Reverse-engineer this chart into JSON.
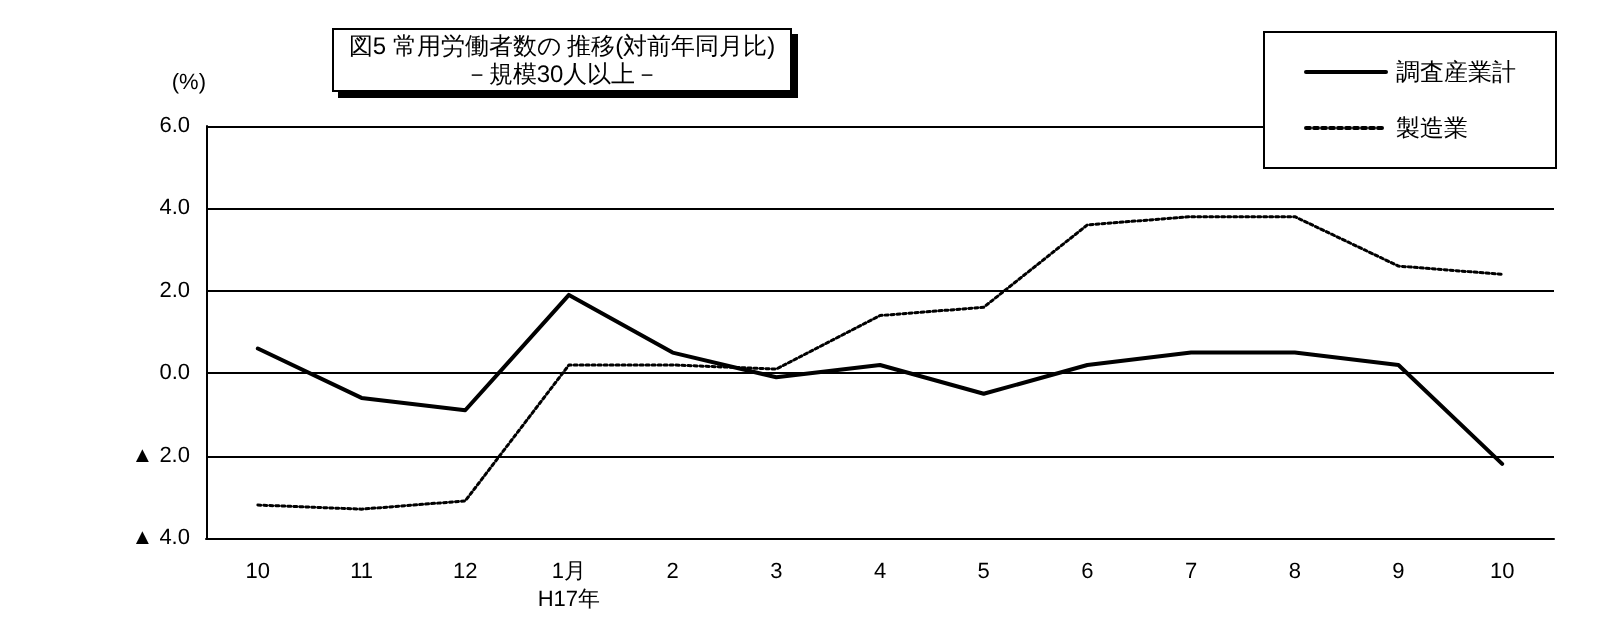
{
  "chart_data": {
    "type": "line",
    "title": "図5 常用労働者数の 推移(対前年同月比)",
    "subtitle": "－規模30人以上－",
    "ylabel": "(%)",
    "categories": [
      "10",
      "11",
      "12",
      "1月\nH17年",
      "2",
      "3",
      "4",
      "5",
      "6",
      "7",
      "8",
      "9",
      "10"
    ],
    "series": [
      {
        "name": "調査産業計",
        "color": "#000000",
        "line_style": "solid",
        "values": [
          0.6,
          -0.6,
          -0.9,
          1.9,
          0.5,
          -0.1,
          0.2,
          -0.5,
          0.2,
          0.5,
          0.5,
          0.2,
          -2.2
        ]
      },
      {
        "name": "製造業",
        "color": "#000000",
        "line_style": "dotted",
        "values": [
          -3.2,
          -3.3,
          -3.1,
          0.2,
          0.2,
          0.1,
          1.4,
          1.6,
          3.6,
          3.8,
          3.8,
          2.6,
          2.4
        ]
      }
    ],
    "ylim": [
      -4,
      6
    ],
    "yticks": [
      {
        "value": -4,
        "label": "▲ 4.0"
      },
      {
        "value": -2,
        "label": "▲ 2.0"
      },
      {
        "value": 0,
        "label": "0.0"
      },
      {
        "value": 2,
        "label": "2.0"
      },
      {
        "value": 4,
        "label": "4.0"
      },
      {
        "value": 6,
        "label": "6.0"
      }
    ],
    "grid": "y",
    "legend": "top right",
    "marker": "none"
  }
}
